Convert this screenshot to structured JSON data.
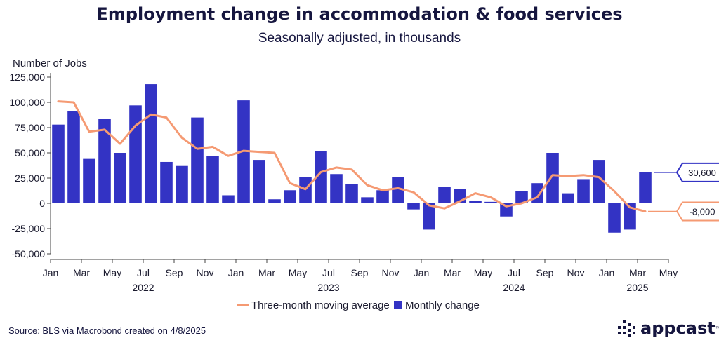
{
  "source": "Source: BLS via Macrobond created on 4/8/2025",
  "logo": {
    "text": "appcast",
    "tm": "™",
    "icon": "appcast-dot-grid-icon"
  },
  "chart_data": {
    "type": "bar",
    "title": "Employment change in accommodation & food services",
    "subtitle": "Seasonally adjusted, in thousands",
    "ylabel": "Number of Jobs",
    "ylim": [
      -50000,
      125000
    ],
    "yticks": [
      125000,
      100000,
      75000,
      50000,
      25000,
      0,
      -25000,
      -50000
    ],
    "ytick_labels": [
      "125,000",
      "100,000",
      "75,000",
      "50,000",
      "25,000",
      "0",
      "-25,000",
      "-50,000"
    ],
    "month_ticks": [
      {
        "label": "Jan",
        "month": "2022-01"
      },
      {
        "label": "Mar",
        "month": "2022-03"
      },
      {
        "label": "May",
        "month": "2022-05"
      },
      {
        "label": "Jul",
        "month": "2022-07"
      },
      {
        "label": "Sep",
        "month": "2022-09"
      },
      {
        "label": "Nov",
        "month": "2022-11"
      },
      {
        "label": "Jan",
        "month": "2023-01"
      },
      {
        "label": "Mar",
        "month": "2023-03"
      },
      {
        "label": "May",
        "month": "2023-05"
      },
      {
        "label": "Jul",
        "month": "2023-07"
      },
      {
        "label": "Sep",
        "month": "2023-09"
      },
      {
        "label": "Nov",
        "month": "2023-11"
      },
      {
        "label": "Jan",
        "month": "2024-01"
      },
      {
        "label": "Mar",
        "month": "2024-03"
      },
      {
        "label": "May",
        "month": "2024-05"
      },
      {
        "label": "Jul",
        "month": "2024-07"
      },
      {
        "label": "Sep",
        "month": "2024-09"
      },
      {
        "label": "Nov",
        "month": "2024-11"
      },
      {
        "label": "Jan",
        "month": "2025-01"
      },
      {
        "label": "Mar",
        "month": "2025-03"
      },
      {
        "label": "May",
        "month": "2025-05"
      }
    ],
    "year_labels": [
      {
        "label": "2022",
        "month": "2022-07"
      },
      {
        "label": "2023",
        "month": "2023-07"
      },
      {
        "label": "2024",
        "month": "2024-07"
      },
      {
        "label": "2025",
        "month": "2025-03"
      }
    ],
    "months": [
      "2022-01",
      "2022-02",
      "2022-03",
      "2022-04",
      "2022-05",
      "2022-06",
      "2022-07",
      "2022-08",
      "2022-09",
      "2022-10",
      "2022-11",
      "2022-12",
      "2023-01",
      "2023-02",
      "2023-03",
      "2023-04",
      "2023-05",
      "2023-06",
      "2023-07",
      "2023-08",
      "2023-09",
      "2023-10",
      "2023-11",
      "2023-12",
      "2024-01",
      "2024-02",
      "2024-03",
      "2024-04",
      "2024-05",
      "2024-06",
      "2024-07",
      "2024-08",
      "2024-09",
      "2024-10",
      "2024-11",
      "2024-12",
      "2025-01",
      "2025-02",
      "2025-03"
    ],
    "series": [
      {
        "name": "Monthly change",
        "type": "bar",
        "color": "#3333c4",
        "values": [
          78000,
          91000,
          44000,
          84000,
          50000,
          97000,
          118000,
          41000,
          37000,
          85000,
          47000,
          8000,
          102000,
          43000,
          4000,
          13000,
          26000,
          52000,
          29000,
          19000,
          6000,
          13000,
          26000,
          -6000,
          -26000,
          16000,
          14000,
          2500,
          1500,
          -13000,
          12000,
          20000,
          50000,
          10000,
          24000,
          43000,
          -29000,
          -26000,
          30600
        ]
      },
      {
        "name": "Three-month moving average",
        "type": "line",
        "color": "#f59a73",
        "values": [
          101000,
          100000,
          71000,
          73000,
          59000,
          77000,
          88000,
          85000,
          65000,
          54000,
          56000,
          47000,
          52000,
          51000,
          50000,
          20000,
          14000,
          31000,
          35500,
          33500,
          18000,
          13000,
          15000,
          11000,
          -2000,
          -5000,
          2000,
          10000,
          6000,
          -3000,
          0,
          6000,
          28000,
          27000,
          28000,
          26000,
          12000,
          -4000,
          -8000
        ]
      }
    ],
    "callouts": [
      {
        "series": "Monthly change",
        "label": "30,600",
        "value": 30600,
        "color": "#3333c4"
      },
      {
        "series": "Three-month moving average",
        "label": "-8,000",
        "value": -8000,
        "color": "#f59a73"
      }
    ],
    "legend": {
      "placement": "bottom",
      "entries": [
        {
          "label": "Three-month moving average",
          "color": "#f59a73",
          "kind": "line"
        },
        {
          "label": "Monthly change",
          "color": "#3333c4",
          "kind": "square"
        }
      ]
    },
    "grid": false
  }
}
